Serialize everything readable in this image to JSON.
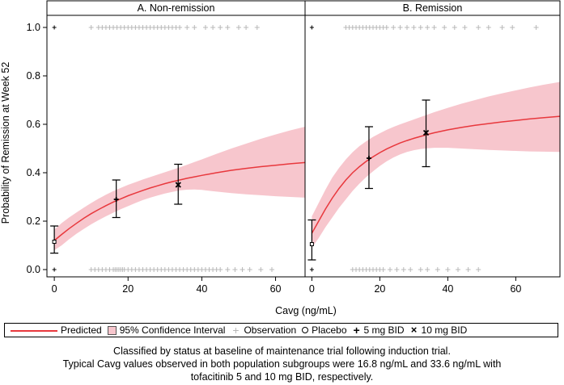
{
  "colors": {
    "predicted": "#e8383d",
    "ci_band": "#f7c6cd",
    "observation": "#b8b8b8",
    "axis": "#000000"
  },
  "chart_data": [
    {
      "type": "line",
      "panel_title": "A. Non-remission",
      "xlabel": "Cavg (ng/mL)",
      "ylabel": "Probability of Remission at Week 52",
      "xlim": [
        -2,
        68
      ],
      "ylim": [
        -0.03,
        1.05
      ],
      "x_ticks": [
        0,
        20,
        40,
        60
      ],
      "y_ticks": [
        0.0,
        0.2,
        0.4,
        0.6,
        0.8,
        1.0
      ],
      "x_tick_labels": [
        "0",
        "20",
        "40",
        "60"
      ],
      "y_tick_labels": [
        "0.0",
        "0.2",
        "0.4",
        "0.6",
        "0.8",
        "1.0"
      ],
      "predicted": {
        "x": [
          0,
          2,
          4,
          6,
          8,
          10,
          12,
          14,
          16,
          18,
          20,
          22,
          24,
          26,
          28,
          30,
          32,
          34,
          36,
          38,
          40,
          44,
          48,
          52,
          56,
          60,
          64,
          68
        ],
        "y": [
          0.12,
          0.145,
          0.169,
          0.191,
          0.212,
          0.231,
          0.248,
          0.264,
          0.279,
          0.292,
          0.305,
          0.316,
          0.327,
          0.337,
          0.346,
          0.355,
          0.363,
          0.37,
          0.377,
          0.383,
          0.389,
          0.4,
          0.41,
          0.418,
          0.425,
          0.431,
          0.437,
          0.442
        ]
      },
      "ci_band": {
        "lower": [
          0.08,
          0.1,
          0.125,
          0.148,
          0.168,
          0.187,
          0.204,
          0.22,
          0.235,
          0.249,
          0.262,
          0.275,
          0.287,
          0.297,
          0.306,
          0.314,
          0.321,
          0.327,
          0.33,
          0.331,
          0.329,
          0.322,
          0.316,
          0.311,
          0.307,
          0.303,
          0.3,
          0.297
        ],
        "upper": [
          0.165,
          0.192,
          0.215,
          0.236,
          0.256,
          0.275,
          0.293,
          0.309,
          0.324,
          0.337,
          0.35,
          0.361,
          0.372,
          0.382,
          0.392,
          0.402,
          0.412,
          0.422,
          0.433,
          0.444,
          0.455,
          0.478,
          0.5,
          0.52,
          0.54,
          0.558,
          0.575,
          0.59
        ]
      },
      "observed": [
        {
          "group": "Placebo",
          "x": 0,
          "y": 0.115,
          "lower": 0.068,
          "upper": 0.18
        },
        {
          "group": "5 mg BID",
          "x": 16.8,
          "y": 0.29,
          "lower": 0.215,
          "upper": 0.37
        },
        {
          "group": "10 mg BID",
          "x": 33.6,
          "y": 0.35,
          "lower": 0.27,
          "upper": 0.435
        }
      ],
      "observations": {
        "y1_x": [
          0,
          10,
          12,
          13,
          14,
          15,
          16,
          17,
          18,
          19,
          20,
          21,
          22,
          23,
          24,
          25,
          26,
          27,
          28,
          29,
          30,
          31,
          32,
          33,
          34,
          36,
          38,
          41,
          43,
          45,
          47,
          50,
          52,
          55
        ],
        "y0_x": [
          0,
          10,
          11,
          12,
          13,
          14,
          15,
          16,
          16.5,
          17,
          17.5,
          18,
          18.5,
          19,
          20,
          21,
          22,
          23,
          24,
          25,
          26,
          27,
          28,
          29,
          30,
          31,
          32,
          33,
          34,
          35,
          36,
          37,
          38,
          39,
          40,
          41,
          42,
          43,
          44,
          45,
          47,
          49,
          51,
          53,
          56,
          59
        ]
      }
    },
    {
      "type": "line",
      "panel_title": "B. Remission",
      "xlabel": "Cavg (ng/mL)",
      "xlim": [
        -2,
        73
      ],
      "ylim": [
        -0.03,
        1.05
      ],
      "x_ticks": [
        0,
        20,
        40,
        60
      ],
      "x_tick_labels": [
        "0",
        "20",
        "40",
        "60"
      ],
      "predicted": {
        "x": [
          0,
          2,
          4,
          6,
          8,
          10,
          12,
          14,
          16,
          18,
          20,
          22,
          24,
          26,
          28,
          30,
          32,
          34,
          36,
          40,
          44,
          48,
          52,
          56,
          60,
          64,
          68,
          73
        ],
        "y": [
          0.15,
          0.2,
          0.25,
          0.295,
          0.335,
          0.37,
          0.4,
          0.425,
          0.447,
          0.466,
          0.483,
          0.498,
          0.511,
          0.523,
          0.533,
          0.542,
          0.55,
          0.558,
          0.565,
          0.577,
          0.587,
          0.596,
          0.603,
          0.61,
          0.616,
          0.622,
          0.627,
          0.633
        ]
      },
      "ci_band": {
        "lower": [
          0.09,
          0.13,
          0.175,
          0.215,
          0.255,
          0.29,
          0.325,
          0.355,
          0.382,
          0.406,
          0.428,
          0.447,
          0.463,
          0.476,
          0.486,
          0.493,
          0.498,
          0.501,
          0.503,
          0.503,
          0.5,
          0.497,
          0.494,
          0.492,
          0.49,
          0.488,
          0.487,
          0.486
        ],
        "upper": [
          0.22,
          0.275,
          0.33,
          0.38,
          0.42,
          0.455,
          0.485,
          0.51,
          0.53,
          0.548,
          0.563,
          0.577,
          0.589,
          0.6,
          0.61,
          0.62,
          0.63,
          0.64,
          0.65,
          0.668,
          0.685,
          0.7,
          0.715,
          0.728,
          0.74,
          0.752,
          0.763,
          0.775
        ]
      },
      "observed": [
        {
          "group": "Placebo",
          "x": 0,
          "y": 0.105,
          "lower": 0.04,
          "upper": 0.205
        },
        {
          "group": "5 mg BID",
          "x": 16.8,
          "y": 0.46,
          "lower": 0.335,
          "upper": 0.59
        },
        {
          "group": "10 mg BID",
          "x": 33.6,
          "y": 0.565,
          "lower": 0.425,
          "upper": 0.7
        }
      ],
      "observations": {
        "y1_x": [
          0,
          10,
          11,
          12,
          13,
          14,
          15,
          16,
          17,
          18,
          19,
          20,
          21,
          22,
          24,
          26,
          28,
          30,
          32,
          34,
          36,
          39,
          42,
          45,
          49,
          52,
          56,
          59,
          66
        ],
        "y0_x": [
          0,
          12,
          13,
          14,
          15,
          16,
          17,
          18,
          19,
          20,
          21,
          23,
          25,
          27,
          29,
          32,
          34,
          37,
          40,
          43,
          46,
          49
        ]
      }
    }
  ],
  "legend": {
    "predicted": "Predicted",
    "ci": "95% Confidence Interval",
    "observation": "Observation",
    "placebo": "Placebo",
    "bid5": "5 mg BID",
    "bid10": "10 mg BID"
  },
  "caption": {
    "line1": "Classified by status at baseline of maintenance trial following induction trial.",
    "line2": "Typical Cavg values observed in both population subgroups were 16.8 ng/mL and 33.6 ng/mL with",
    "line3": "tofacitinib 5 and 10 mg BID, respectively."
  }
}
